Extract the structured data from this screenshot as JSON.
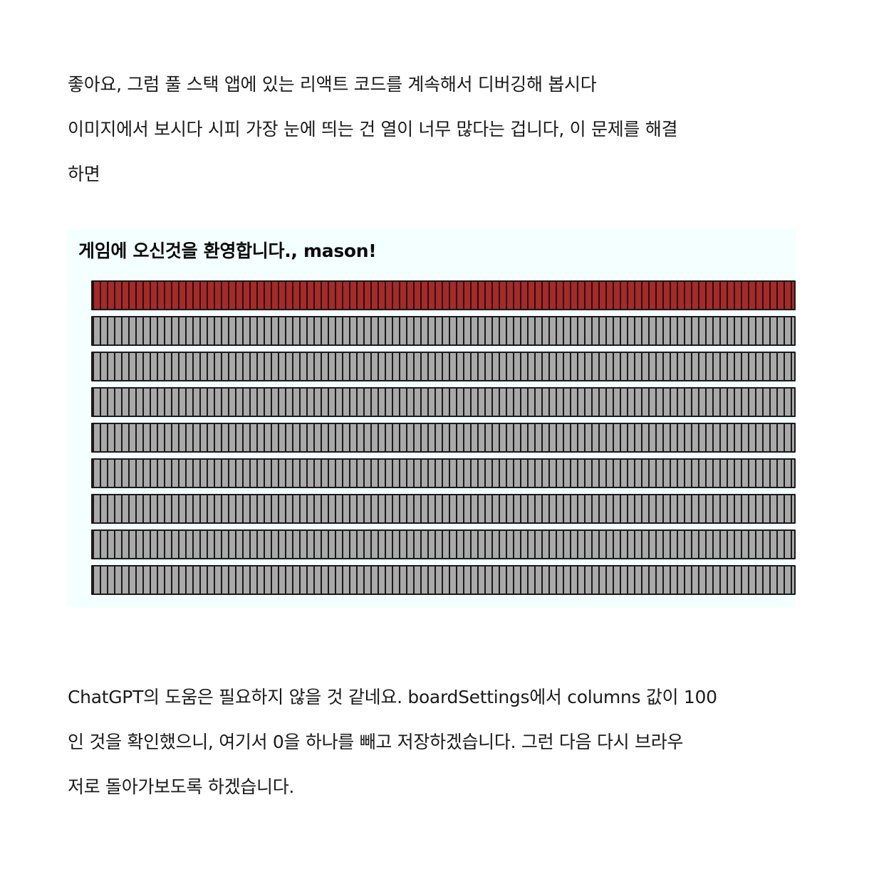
{
  "intro": {
    "lines": [
      "좋아요, 그럼 풀 스택 앱에 있는 리액트 코드를 계속해서 디버깅해 봅시다",
      "이미지에서 보시다 시피 가장 눈에 띄는 건 열이 너무 많다는 겁니다, 이 문제를 해결",
      "하면"
    ]
  },
  "screenshot": {
    "welcome": "게임에 오신것을 환영합니다., mason!",
    "colors": {
      "background": "#f4ffff",
      "active_row": "#a52a2a",
      "idle_row": "#a9a9a9"
    },
    "rows": [
      {
        "state": "active"
      },
      {
        "state": "idle"
      },
      {
        "state": "idle"
      },
      {
        "state": "idle"
      },
      {
        "state": "idle"
      },
      {
        "state": "idle"
      },
      {
        "state": "idle"
      },
      {
        "state": "idle"
      },
      {
        "state": "idle"
      }
    ]
  },
  "outro": {
    "lines": [
      " ChatGPT의 도움은 필요하지 않을 것 같네요. boardSettings에서 columns 값이 100",
      "인 것을 확인했으니, 여기서 0을 하나를 빼고 저장하겠습니다. 그런 다음 다시 브라우",
      "저로 돌아가보도록 하겠습니다."
    ]
  }
}
